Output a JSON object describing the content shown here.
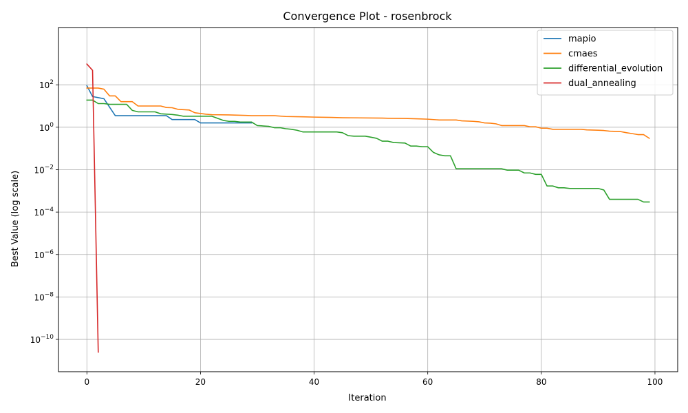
{
  "chart_data": {
    "type": "line",
    "title": "Convergence Plot - rosenbrock",
    "xlabel": "Iteration",
    "ylabel": "Best Value (log scale)",
    "xlim": [
      -5,
      104
    ],
    "ylim": [
      3e-12,
      50000.0
    ],
    "yscale": "log",
    "xticks": [
      0,
      20,
      40,
      60,
      80,
      100
    ],
    "xtick_labels": [
      "0",
      "20",
      "40",
      "60",
      "80",
      "100"
    ],
    "yticks": [
      1e-10,
      1e-08,
      1e-06,
      0.0001,
      0.01,
      1,
      100
    ],
    "ytick_labels": [
      {
        "base": "10",
        "exp": "−10"
      },
      {
        "base": "10",
        "exp": "−8"
      },
      {
        "base": "10",
        "exp": "−6"
      },
      {
        "base": "10",
        "exp": "−4"
      },
      {
        "base": "10",
        "exp": "−2"
      },
      {
        "base": "10",
        "exp": "0"
      },
      {
        "base": "10",
        "exp": "2"
      }
    ],
    "grid": true,
    "legend_position": "top-right",
    "series": [
      {
        "name": "mapio",
        "color": "#1f77b4",
        "points": [
          [
            0,
            90
          ],
          [
            1,
            28
          ],
          [
            3,
            22
          ],
          [
            5,
            3.5
          ],
          [
            14,
            3.5
          ],
          [
            15,
            2.3
          ],
          [
            19,
            2.3
          ],
          [
            20,
            1.6
          ],
          [
            29,
            1.6
          ]
        ]
      },
      {
        "name": "cmaes",
        "color": "#ff7f0e",
        "points": [
          [
            0,
            70
          ],
          [
            2,
            70
          ],
          [
            3,
            62
          ],
          [
            4,
            30
          ],
          [
            5,
            30
          ],
          [
            6,
            16
          ],
          [
            8,
            16
          ],
          [
            9,
            10
          ],
          [
            13,
            10
          ],
          [
            14,
            8.5
          ],
          [
            15,
            8.3
          ],
          [
            16,
            7
          ],
          [
            18,
            6.5
          ],
          [
            19,
            4.8
          ],
          [
            21,
            4.1
          ],
          [
            22,
            3.9
          ],
          [
            25,
            3.8
          ],
          [
            28,
            3.6
          ],
          [
            29,
            3.5
          ],
          [
            33,
            3.5
          ],
          [
            35,
            3.2
          ],
          [
            38,
            3.1
          ],
          [
            40,
            3.0
          ],
          [
            43,
            2.9
          ],
          [
            45,
            2.8
          ],
          [
            52,
            2.7
          ],
          [
            53,
            2.65
          ],
          [
            56,
            2.6
          ],
          [
            58,
            2.5
          ],
          [
            60,
            2.4
          ],
          [
            62,
            2.2
          ],
          [
            65,
            2.2
          ],
          [
            66,
            2.0
          ],
          [
            68,
            1.9
          ],
          [
            69,
            1.8
          ],
          [
            70,
            1.6
          ],
          [
            71,
            1.55
          ],
          [
            72,
            1.45
          ],
          [
            73,
            1.2
          ],
          [
            77,
            1.2
          ],
          [
            78,
            1.05
          ],
          [
            79,
            1.05
          ],
          [
            80,
            0.9
          ],
          [
            81,
            0.9
          ],
          [
            82,
            0.8
          ],
          [
            87,
            0.8
          ],
          [
            88,
            0.75
          ],
          [
            90,
            0.72
          ],
          [
            91,
            0.7
          ],
          [
            92,
            0.65
          ],
          [
            94,
            0.62
          ],
          [
            95,
            0.55
          ],
          [
            96,
            0.5
          ],
          [
            97,
            0.45
          ],
          [
            98,
            0.45
          ],
          [
            99,
            0.3
          ]
        ]
      },
      {
        "name": "differential_evolution",
        "color": "#2ca02c",
        "points": [
          [
            0,
            19
          ],
          [
            1,
            19
          ],
          [
            2,
            13
          ],
          [
            3,
            13
          ],
          [
            4,
            12
          ],
          [
            7,
            12
          ],
          [
            8,
            6.2
          ],
          [
            9,
            5.3
          ],
          [
            12,
            5.3
          ],
          [
            13,
            4.3
          ],
          [
            15,
            4.0
          ],
          [
            16,
            3.7
          ],
          [
            17,
            3.3
          ],
          [
            22,
            3.3
          ],
          [
            24,
            2.1
          ],
          [
            25,
            1.9
          ],
          [
            26,
            1.9
          ],
          [
            27,
            1.75
          ],
          [
            29,
            1.75
          ],
          [
            30,
            1.2
          ],
          [
            32,
            1.1
          ],
          [
            33,
            0.95
          ],
          [
            34,
            0.95
          ],
          [
            35,
            0.85
          ],
          [
            36,
            0.8
          ],
          [
            37,
            0.72
          ],
          [
            38,
            0.6
          ],
          [
            44,
            0.6
          ],
          [
            45,
            0.55
          ],
          [
            46,
            0.4
          ],
          [
            47,
            0.38
          ],
          [
            49,
            0.38
          ],
          [
            50,
            0.34
          ],
          [
            51,
            0.3
          ],
          [
            52,
            0.22
          ],
          [
            53,
            0.22
          ],
          [
            54,
            0.19
          ],
          [
            56,
            0.18
          ],
          [
            57,
            0.13
          ],
          [
            58,
            0.13
          ],
          [
            59,
            0.12
          ],
          [
            60,
            0.12
          ],
          [
            61,
            0.065
          ],
          [
            62,
            0.05
          ],
          [
            63,
            0.045
          ],
          [
            64,
            0.045
          ],
          [
            65,
            0.011
          ],
          [
            73,
            0.011
          ],
          [
            74,
            0.0095
          ],
          [
            76,
            0.0095
          ],
          [
            77,
            0.007
          ],
          [
            78,
            0.007
          ],
          [
            79,
            0.006
          ],
          [
            80,
            0.006
          ],
          [
            81,
            0.0017
          ],
          [
            82,
            0.0017
          ],
          [
            83,
            0.0014
          ],
          [
            84,
            0.0014
          ],
          [
            85,
            0.0013
          ],
          [
            90,
            0.0013
          ],
          [
            91,
            0.0011
          ],
          [
            92,
            0.0004
          ],
          [
            97,
            0.0004
          ],
          [
            98,
            0.0003
          ],
          [
            99,
            0.0003
          ]
        ]
      },
      {
        "name": "dual_annealing",
        "color": "#d62728",
        "points": [
          [
            0,
            950
          ],
          [
            1,
            480
          ],
          [
            2,
            2.5e-11
          ]
        ]
      }
    ]
  }
}
